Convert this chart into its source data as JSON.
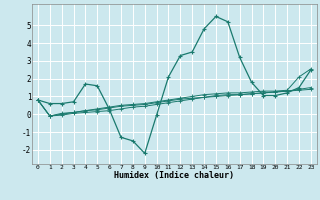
{
  "title": "",
  "xlabel": "Humidex (Indice chaleur)",
  "xlim": [
    -0.5,
    23.5
  ],
  "ylim": [
    -2.8,
    6.2
  ],
  "yticks": [
    -2,
    -1,
    0,
    1,
    2,
    3,
    4,
    5
  ],
  "xticks": [
    0,
    1,
    2,
    3,
    4,
    5,
    6,
    7,
    8,
    9,
    10,
    11,
    12,
    13,
    14,
    15,
    16,
    17,
    18,
    19,
    20,
    21,
    22,
    23
  ],
  "background_color": "#cce8ee",
  "grid_color": "#ffffff",
  "line_color": "#1a7a6e",
  "series": [
    [
      0.8,
      0.6,
      0.6,
      0.7,
      1.7,
      1.6,
      0.3,
      -1.3,
      -1.5,
      -2.2,
      -0.05,
      2.1,
      3.3,
      3.5,
      4.8,
      5.5,
      5.2,
      3.2,
      1.8,
      1.05,
      1.05,
      1.2,
      1.5,
      2.5
    ],
    [
      0.8,
      -0.1,
      -0.05,
      0.05,
      0.1,
      0.15,
      0.2,
      0.3,
      0.4,
      0.45,
      0.55,
      0.65,
      0.75,
      0.85,
      0.95,
      1.05,
      1.1,
      1.1,
      1.15,
      1.2,
      1.25,
      1.3,
      1.35,
      1.4
    ],
    [
      0.8,
      -0.1,
      0.05,
      0.1,
      0.2,
      0.25,
      0.35,
      0.45,
      0.5,
      0.55,
      0.65,
      0.75,
      0.85,
      0.9,
      0.95,
      1.0,
      1.05,
      1.1,
      1.15,
      1.2,
      1.25,
      1.3,
      1.4,
      1.5
    ],
    [
      0.8,
      -0.1,
      0.0,
      0.1,
      0.2,
      0.3,
      0.4,
      0.5,
      0.55,
      0.6,
      0.7,
      0.8,
      0.9,
      1.0,
      1.1,
      1.15,
      1.2,
      1.2,
      1.25,
      1.3,
      1.3,
      1.35,
      2.1,
      2.55
    ]
  ],
  "xlabel_fontsize": 6.0,
  "xtick_fontsize": 4.5,
  "ytick_fontsize": 5.5
}
